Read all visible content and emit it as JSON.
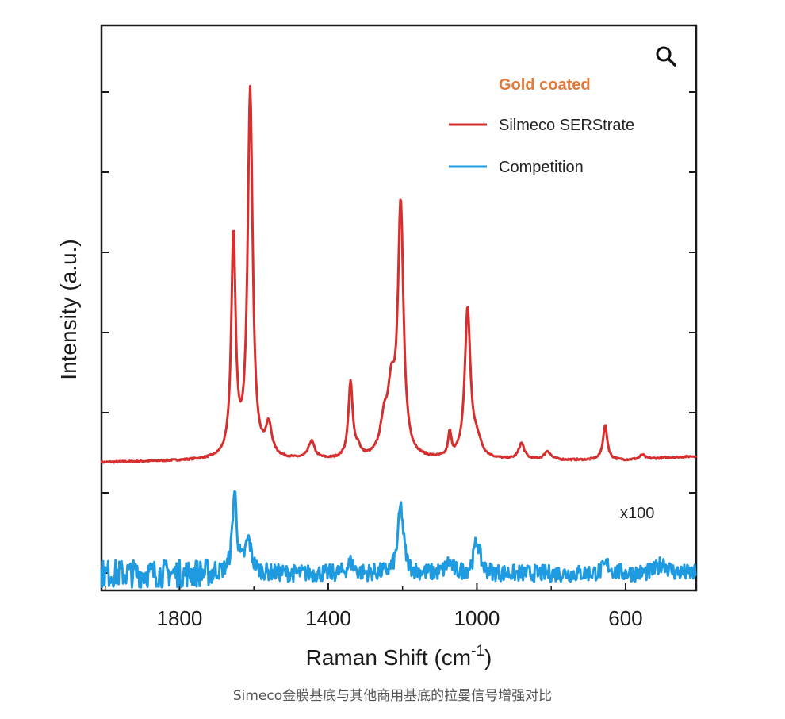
{
  "chart_data": {
    "type": "line",
    "xlabel": "Raman Shift (cm",
    "xlabel_sup": "-1",
    "xlabel_end": ")",
    "ylabel": "Intensity (a.u.)",
    "xlim": [
      2010,
      410
    ],
    "x_ticks": [
      1800,
      1400,
      1000,
      600
    ],
    "y_ticks": "unlabeled",
    "legend_title": "Gold coated",
    "legend_placement": "top-right",
    "annotation": "x100",
    "series": [
      {
        "name": "Silmeco SERStrate",
        "color": "#d62f2f",
        "baseline": 0.0,
        "peaks": [
          {
            "x": 1655,
            "h": 2.05,
            "w": 7
          },
          {
            "x": 1610,
            "h": 3.4,
            "w": 8
          },
          {
            "x": 1560,
            "h": 0.28,
            "w": 10
          },
          {
            "x": 1445,
            "h": 0.16,
            "w": 10
          },
          {
            "x": 1340,
            "h": 0.7,
            "w": 7
          },
          {
            "x": 1320,
            "h": 0.08,
            "w": 8
          },
          {
            "x": 1250,
            "h": 0.28,
            "w": 12
          },
          {
            "x": 1230,
            "h": 0.55,
            "w": 12
          },
          {
            "x": 1205,
            "h": 2.3,
            "w": 9
          },
          {
            "x": 1073,
            "h": 0.22,
            "w": 5
          },
          {
            "x": 1025,
            "h": 1.38,
            "w": 9
          },
          {
            "x": 1000,
            "h": 0.15,
            "w": 14
          },
          {
            "x": 880,
            "h": 0.15,
            "w": 9
          },
          {
            "x": 810,
            "h": 0.08,
            "w": 10
          },
          {
            "x": 655,
            "h": 0.32,
            "w": 7
          },
          {
            "x": 555,
            "h": 0.04,
            "w": 8
          }
        ]
      },
      {
        "name": "Competition",
        "color": "#1e9ae0",
        "scale_note": "x100",
        "baseline": -1.05,
        "peaks": [
          {
            "x": 1652,
            "h": 0.75,
            "w": 7
          },
          {
            "x": 1615,
            "h": 0.3,
            "w": 10
          },
          {
            "x": 1340,
            "h": 0.1,
            "w": 10
          },
          {
            "x": 1205,
            "h": 0.62,
            "w": 9
          },
          {
            "x": 1075,
            "h": 0.1,
            "w": 10
          },
          {
            "x": 1000,
            "h": 0.3,
            "w": 10
          },
          {
            "x": 650,
            "h": 0.08,
            "w": 12
          },
          {
            "x": 500,
            "h": 0.1,
            "w": 15
          }
        ]
      }
    ]
  },
  "caption": "Simeco金膜基底与其他商用基底的拉曼信号增强对比",
  "colors": {
    "legend_title": "#e07a3a",
    "axis": "#1a1a1a"
  },
  "icons": {
    "zoom": "magnifier-icon"
  }
}
